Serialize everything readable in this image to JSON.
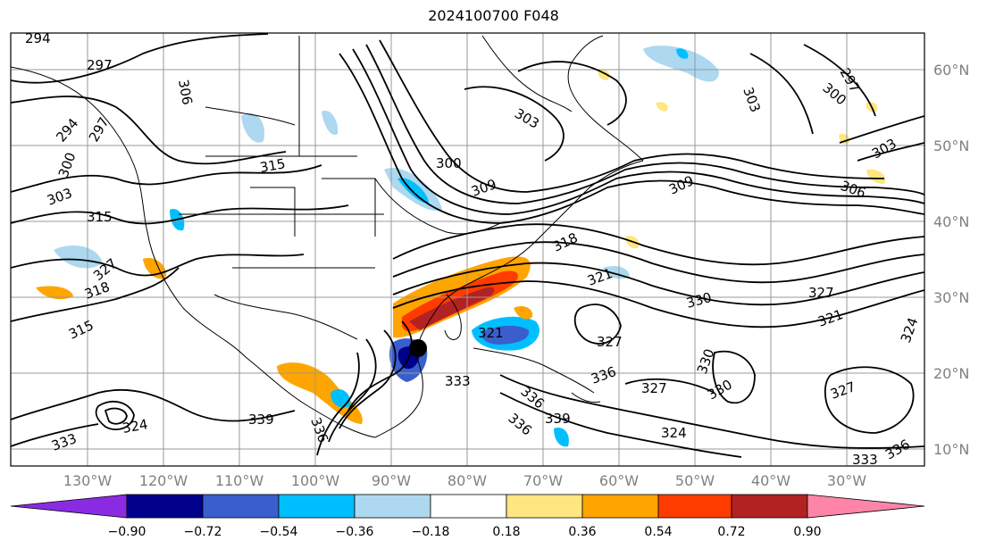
{
  "title": "2024100700 F048",
  "latitude_labels": [
    "60°N",
    "50°N",
    "40°N",
    "30°N",
    "20°N",
    "10°N"
  ],
  "longitude_labels": [
    "130°W",
    "120°W",
    "110°W",
    "100°W",
    "90°W",
    "80°W",
    "70°W",
    "60°W",
    "50°W",
    "40°W",
    "30°W"
  ],
  "colorbar": {
    "ticks": [
      "−0.90",
      "−0.72",
      "−0.54",
      "−0.36",
      "−0.18",
      "0.18",
      "0.36",
      "0.54",
      "0.72",
      "0.90"
    ],
    "colors": [
      "#8a2be2",
      "#00008b",
      "#3a5fcd",
      "#00bfff",
      "#add8f0",
      "#ffffff",
      "#ffe680",
      "#ffa500",
      "#ff3c00",
      "#b22222",
      "#ff85a8"
    ]
  },
  "contour_labels": [
    "294",
    "297",
    "306",
    "294",
    "300",
    "303",
    "315",
    "327",
    "318",
    "315",
    "297",
    "309",
    "315",
    "300",
    "303",
    "318",
    "321",
    "306",
    "309",
    "303",
    "300",
    "297",
    "303",
    "327",
    "330",
    "321",
    "324",
    "327",
    "330",
    "336",
    "327",
    "330",
    "333",
    "336",
    "339",
    "324",
    "333",
    "336",
    "327",
    "321",
    "339",
    "324",
    "336",
    "336",
    "333"
  ],
  "storm_marker": "hurricane-center-marker"
}
